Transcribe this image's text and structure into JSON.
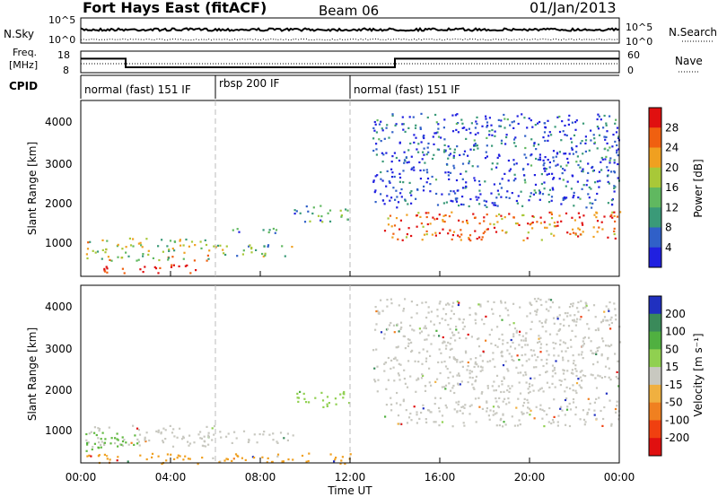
{
  "header": {
    "station": "Fort Hays East (fitACF)",
    "beam": "Beam 06",
    "date": "01/Jan/2013"
  },
  "noise_panel": {
    "left_label": "N.Sky",
    "right_label": "N.Search",
    "left_ticks": [
      "10^5",
      "10^0"
    ],
    "right_ticks": [
      "10^5",
      "10^0"
    ]
  },
  "freq_panel": {
    "left_label_line1": "Freq.",
    "left_label_line2": "[MHz]",
    "right_label": "Nave",
    "left_ticks": [
      "18",
      "8"
    ],
    "right_ticks": [
      "60",
      "0"
    ],
    "freq_segments": [
      {
        "t0": 0,
        "t1": 2,
        "freq_mhz": 14.5
      },
      {
        "t0": 2,
        "t1": 14,
        "freq_mhz": 10.5
      },
      {
        "t0": 14,
        "t1": 24,
        "freq_mhz": 14.5
      }
    ],
    "nave_level": 25
  },
  "cpid": {
    "label": "CPID",
    "segments": [
      {
        "t0": 0,
        "t1": 6,
        "name": "normal (fast) 151 IF"
      },
      {
        "t0": 6,
        "t1": 12,
        "name": "rbsp 200 IF"
      },
      {
        "t0": 12,
        "t1": 24,
        "name": "normal (fast) 151 IF"
      }
    ]
  },
  "chart_data": [
    {
      "type": "heatmap",
      "quantity": "power",
      "ylabel": "Slant Range [km]",
      "xlabel": "",
      "y_ticks": [
        "1000",
        "2000",
        "3000",
        "4000"
      ],
      "ylim": [
        200,
        4500
      ],
      "xlim_hours": [
        0,
        24
      ],
      "colorbar_label": "Power [dB]",
      "colorbar_ticks": [
        "4",
        "8",
        "12",
        "16",
        "20",
        "24",
        "28"
      ],
      "colorbar_colors": [
        "#2020e0",
        "#3060c8",
        "#3a9a78",
        "#60b860",
        "#a8c838",
        "#f0a020",
        "#f06010",
        "#e01010"
      ],
      "regions": [
        {
          "t0": 0.2,
          "t1": 6.0,
          "r0": 600,
          "r1": 1150,
          "level": 0.55
        },
        {
          "t0": 1.0,
          "t1": 5.5,
          "r0": 300,
          "r1": 500,
          "level": 1.0
        },
        {
          "t0": 6.0,
          "t1": 9.5,
          "r0": 700,
          "r1": 1000,
          "level": 0.45
        },
        {
          "t0": 6.5,
          "t1": 9.0,
          "r0": 1250,
          "r1": 1400,
          "level": 0.3
        },
        {
          "t0": 9.5,
          "t1": 12.0,
          "r0": 1550,
          "r1": 1950,
          "level": 0.35
        },
        {
          "t0": 13.5,
          "t1": 24.0,
          "r0": 1100,
          "r1": 1800,
          "level": 0.8
        },
        {
          "t0": 13.0,
          "t1": 24.0,
          "r0": 1900,
          "r1": 4200,
          "level": 0.15
        }
      ]
    },
    {
      "type": "heatmap",
      "quantity": "velocity",
      "ylabel": "Slant Range [km]",
      "xlabel": "Time UT",
      "x_ticks": [
        "00:00",
        "04:00",
        "08:00",
        "12:00",
        "16:00",
        "20:00",
        "00:00"
      ],
      "y_ticks": [
        "1000",
        "2000",
        "3000",
        "4000"
      ],
      "ylim": [
        200,
        4500
      ],
      "xlim_hours": [
        0,
        24
      ],
      "colorbar_label": "Velocity [m s⁻¹]",
      "colorbar_ticks": [
        "200",
        "100",
        "50",
        "15",
        "-15",
        "-50",
        "-100",
        "-200"
      ],
      "colorbar_colors": [
        "#2030c0",
        "#3a8a5a",
        "#50b040",
        "#90d050",
        "#c8c8c0",
        "#f0b040",
        "#f08020",
        "#f04010",
        "#e01010"
      ],
      "regions": [
        {
          "t0": 0.2,
          "t1": 6.0,
          "r0": 600,
          "r1": 1150,
          "color": "#c8c8c0"
        },
        {
          "t0": 0.2,
          "t1": 2.5,
          "r0": 500,
          "r1": 1000,
          "color": "#60b840"
        },
        {
          "t0": 0.2,
          "t1": 12.0,
          "r0": 200,
          "r1": 450,
          "color": "#f0a020"
        },
        {
          "t0": 6.0,
          "t1": 9.5,
          "r0": 700,
          "r1": 1000,
          "color": "#c8c8c0"
        },
        {
          "t0": 9.5,
          "t1": 12.0,
          "r0": 1550,
          "r1": 1950,
          "color": "#90d050"
        },
        {
          "t0": 13.5,
          "t1": 24.0,
          "r0": 1100,
          "r1": 1800,
          "color": "#c8c8c0"
        },
        {
          "t0": 13.0,
          "t1": 24.0,
          "r0": 1900,
          "r1": 4200,
          "color": "#c8c8c0"
        }
      ]
    }
  ]
}
